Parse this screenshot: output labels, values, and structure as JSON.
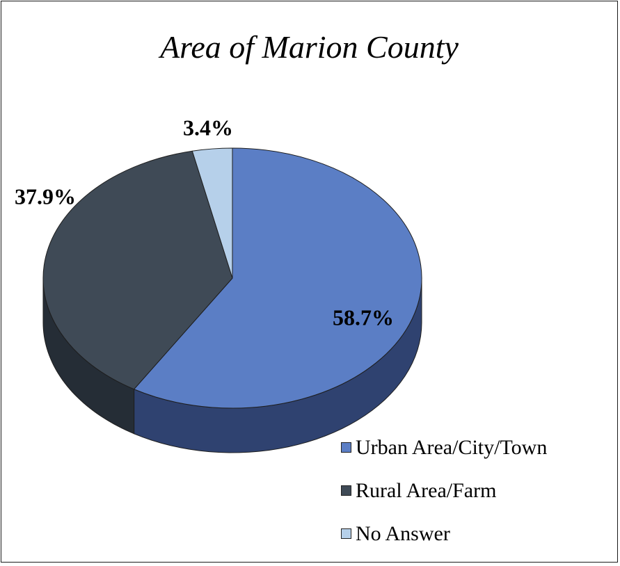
{
  "chart_data": {
    "type": "pie",
    "title": "Area of Marion County",
    "categories": [
      "Urban Area/City/Town",
      "Rural Area/Farm",
      "No Answer"
    ],
    "values": [
      58.7,
      37.9,
      3.4
    ],
    "data_labels": [
      "58.7%",
      "37.9%",
      "3.4%"
    ],
    "colors": [
      "#5b7ec5",
      "#3f4a56",
      "#b6d0ea"
    ],
    "side_colors": [
      "#2f4270",
      "#252d36",
      "#6f8aa8"
    ],
    "legend": "bottom-right",
    "style": "3d"
  }
}
